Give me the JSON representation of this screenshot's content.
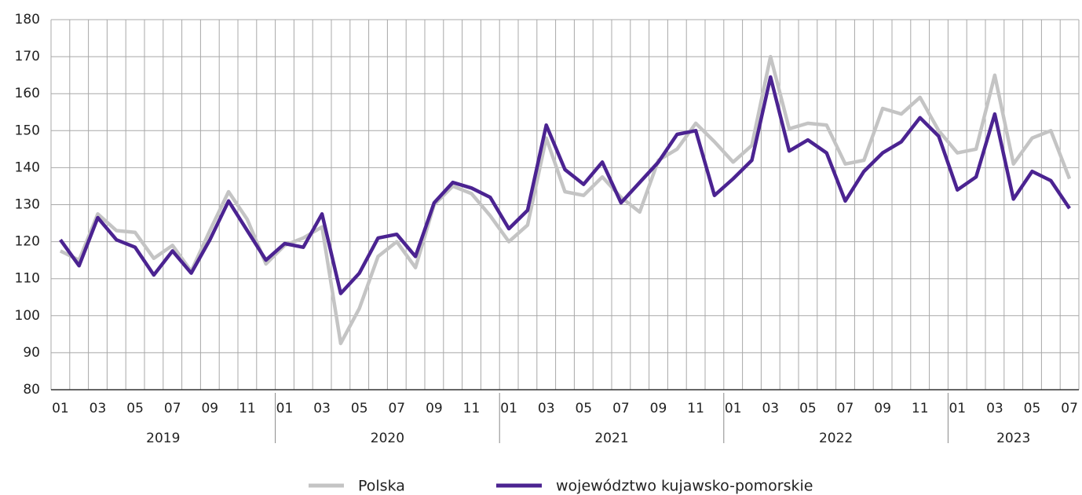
{
  "chart_data": {
    "type": "line",
    "categories": [
      "01",
      null,
      "03",
      null,
      "05",
      null,
      "07",
      null,
      "09",
      null,
      "11",
      null,
      "01",
      null,
      "03",
      null,
      "05",
      null,
      "07",
      null,
      "09",
      null,
      "11",
      null,
      "01",
      null,
      "03",
      null,
      "05",
      null,
      "07",
      null,
      "09",
      null,
      "11",
      null,
      "01",
      null,
      "03",
      null,
      "05",
      null,
      "07",
      null,
      "09",
      null,
      "11",
      null,
      "01",
      null,
      "03",
      null,
      "05",
      null,
      "07"
    ],
    "years": [
      "2019",
      "2020",
      "2021",
      "2022",
      "2023"
    ],
    "series": [
      {
        "name": "Polska",
        "color": "#c4c4c4",
        "values": [
          117.5,
          115,
          127.5,
          123,
          122.5,
          115.5,
          119,
          112,
          123,
          133.5,
          126,
          114,
          119,
          121,
          124,
          92.5,
          102,
          116,
          120,
          113,
          130,
          135,
          133,
          127,
          120,
          124.5,
          148,
          133.5,
          132.5,
          137.5,
          132,
          128,
          142,
          145,
          152,
          147,
          141.5,
          146,
          170,
          150.5,
          152,
          151.5,
          141,
          142,
          156,
          154.5,
          159,
          150,
          144,
          145,
          165,
          141,
          148,
          150,
          137
        ]
      },
      {
        "name": "województwo kujawsko-pomorskie",
        "color": "#4b2391",
        "values": [
          120.5,
          113.5,
          126.5,
          120.5,
          118.5,
          111,
          117.5,
          111.5,
          120.5,
          131,
          123,
          115,
          119.5,
          118.5,
          127.5,
          106,
          111.5,
          121,
          122,
          116,
          130.5,
          136,
          134.5,
          132,
          123.5,
          128.5,
          151.5,
          139.5,
          135.5,
          141.5,
          130.5,
          136,
          141.5,
          149,
          150,
          132.5,
          137,
          142,
          164.5,
          144.5,
          147.5,
          144,
          131,
          139,
          144,
          147,
          153.5,
          148.5,
          134,
          137.5,
          154.5,
          131.5,
          139,
          136.5,
          129
        ]
      }
    ],
    "ylim": [
      80,
      180
    ],
    "yticks": [
      80,
      90,
      100,
      110,
      120,
      130,
      140,
      150,
      160,
      170,
      180
    ],
    "grid": true,
    "legend": "bottom"
  }
}
